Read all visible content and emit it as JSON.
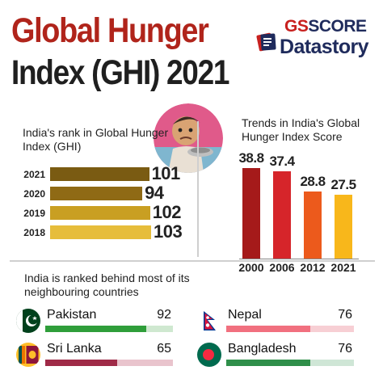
{
  "header": {
    "title_line1": "Global Hunger",
    "title_line2": "Index (GHI) 2021"
  },
  "brand": {
    "part1": "GS",
    "part2": "SCORE",
    "part3": "Datastory",
    "icon": "brand-stack-icon"
  },
  "illustration": {
    "icon": "hungry-child-illustration-icon"
  },
  "chart_data": [
    {
      "type": "bar",
      "orientation": "horizontal",
      "title": "India's rank in Global Hunger Index (GHI)",
      "categories": [
        "2021",
        "2020",
        "2019",
        "2018"
      ],
      "values": [
        101,
        94,
        102,
        103
      ],
      "colors": [
        "#7a5b12",
        "#8f6a15",
        "#c99f22",
        "#e6bd3b"
      ],
      "grid": false,
      "legend": "none"
    },
    {
      "type": "bar",
      "orientation": "vertical",
      "title": "Trends in India's Global Hunger Index Score",
      "categories": [
        "2000",
        "2006",
        "2012",
        "2021"
      ],
      "values": [
        38.8,
        37.4,
        28.8,
        27.5
      ],
      "value_labels": [
        "38.8",
        "37.4",
        "28.8",
        "27.5"
      ],
      "colors": [
        "#a51a1a",
        "#d6252a",
        "#ec5a1c",
        "#f8b71b"
      ],
      "grid": false,
      "legend": "none"
    }
  ],
  "neighbours": {
    "title": "India is ranked behind most of its neighbouring countries",
    "countries": [
      {
        "name": "Pakistan",
        "rank": "92",
        "value": 92,
        "bar_color": "#2f9e3a",
        "track_color": "#cfe8d0",
        "flag": "pakistan-flag-icon"
      },
      {
        "name": "Nepal",
        "rank": "76",
        "value": 76,
        "bar_color": "#f1707f",
        "track_color": "#f7cfd4",
        "flag": "nepal-flag-icon"
      },
      {
        "name": "Sri Lanka",
        "rank": "65",
        "value": 65,
        "bar_color": "#9f2a47",
        "track_color": "#e9c4cd",
        "flag": "sri-lanka-flag-icon"
      },
      {
        "name": "Bangladesh",
        "rank": "76",
        "value": 76,
        "bar_color": "#2f8f4a",
        "track_color": "#cfe6d6",
        "flag": "bangladesh-flag-icon"
      }
    ]
  }
}
